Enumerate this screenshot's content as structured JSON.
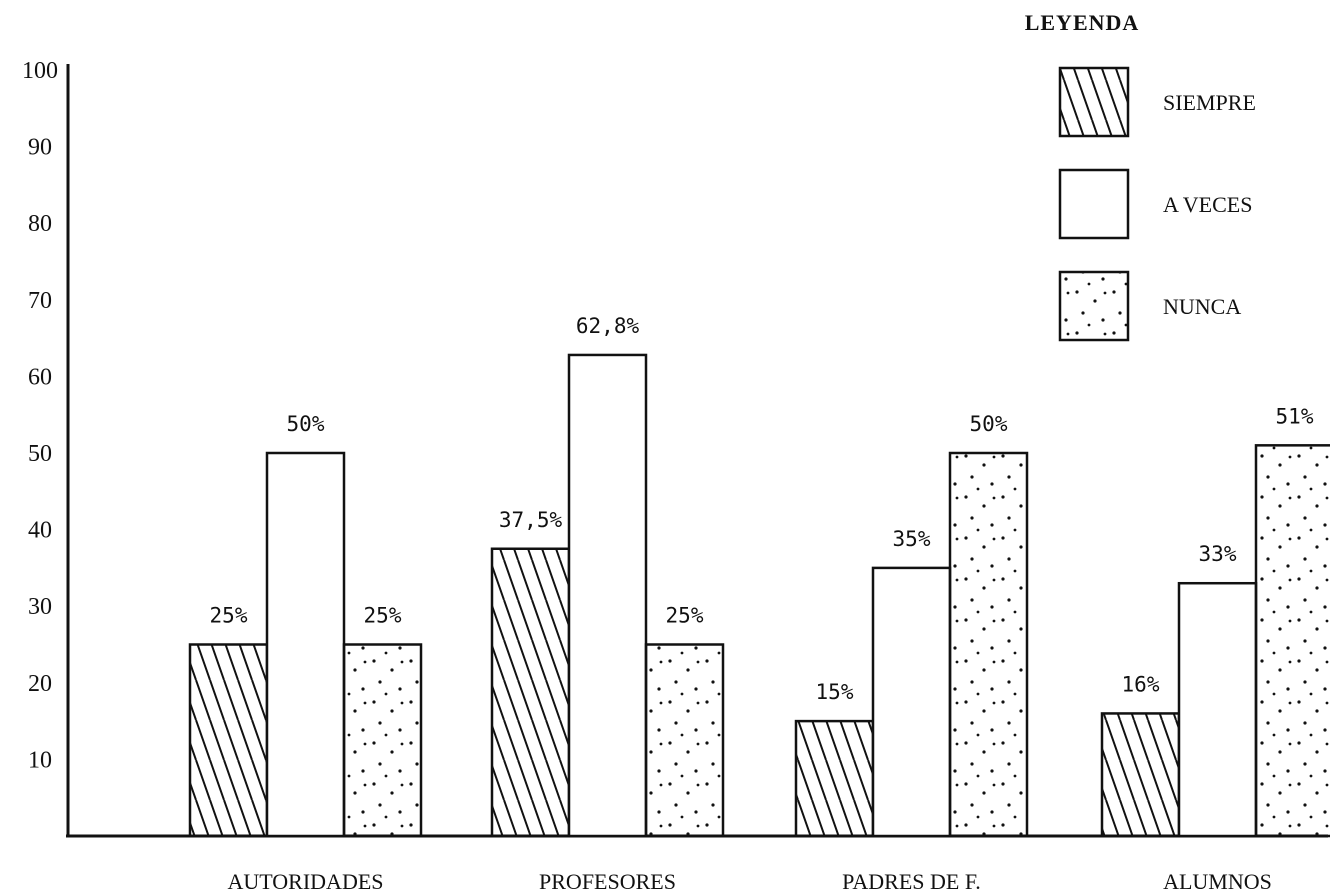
{
  "chart_data": {
    "type": "bar",
    "title": "",
    "xlabel": "",
    "ylabel": "",
    "ylim": [
      0,
      100
    ],
    "yticks": [
      10,
      20,
      30,
      40,
      50,
      60,
      70,
      80,
      90,
      100
    ],
    "grid": false,
    "legend_placement": "top-right",
    "legend_title": "LEYENDA",
    "categories": [
      "AUTORIDADES",
      "PROFESORES",
      "PADRES DE F.",
      "ALUMNOS"
    ],
    "series": [
      {
        "name": "SIEMPRE",
        "pattern": "diagonal-hatch",
        "values": [
          25,
          37.5,
          15,
          16
        ],
        "labels": [
          "25%",
          "37,5%",
          "15%",
          "16%"
        ]
      },
      {
        "name": "A VECES",
        "pattern": "none",
        "values": [
          50,
          62.8,
          35,
          33
        ],
        "labels": [
          "50%",
          "62,8%",
          "35%",
          "33%"
        ]
      },
      {
        "name": "NUNCA",
        "pattern": "dots",
        "values": [
          25,
          25,
          50,
          51
        ],
        "labels": [
          "25%",
          "25%",
          "50%",
          "51%"
        ]
      }
    ],
    "colors": {
      "stroke": "#111111",
      "fill": "#ffffff"
    }
  }
}
